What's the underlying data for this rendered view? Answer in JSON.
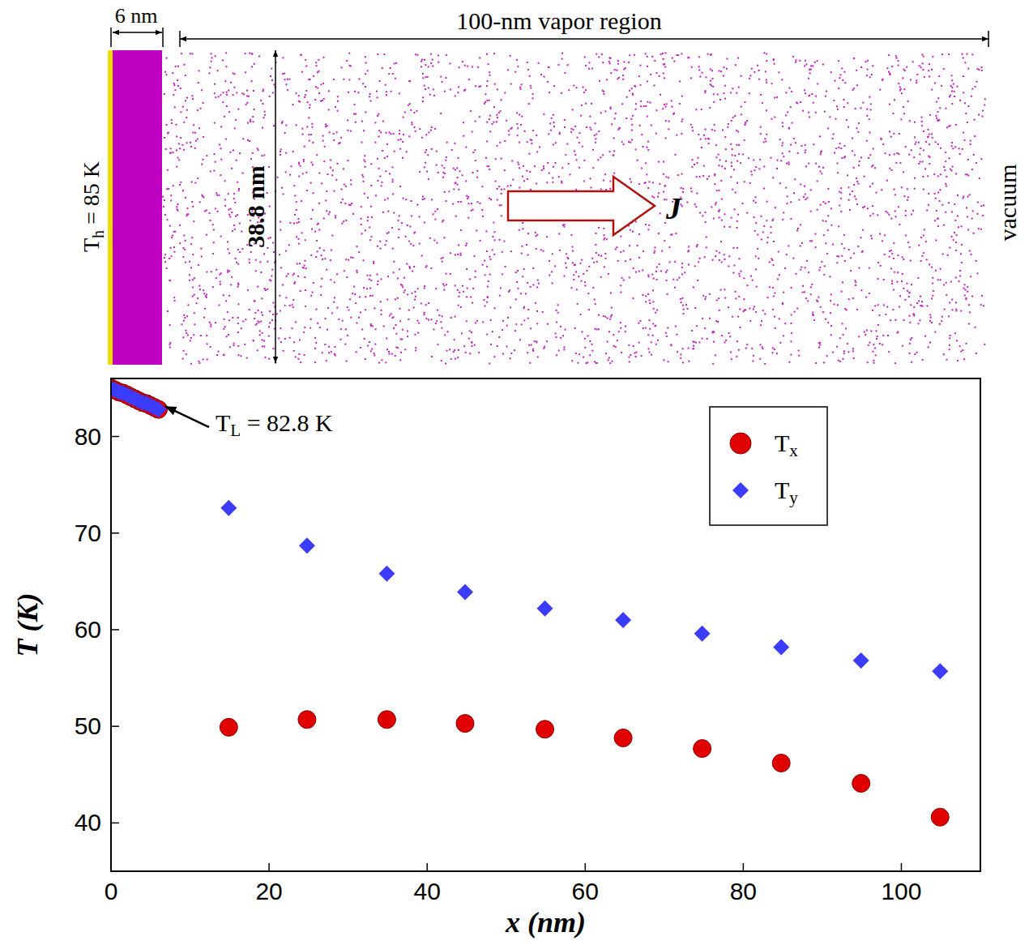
{
  "chart_data": {
    "type": "scatter",
    "x_label": "x (nm)",
    "y_label": "T (K)",
    "xlim": [
      0,
      110
    ],
    "ylim": [
      35,
      86
    ],
    "xticks": [
      0,
      20,
      40,
      60,
      80,
      100
    ],
    "yticks": [
      40,
      50,
      60,
      70,
      80
    ],
    "grid": false,
    "legend": "upper right",
    "series": [
      {
        "name": "Tx",
        "color": "#e00000",
        "marker": "circle",
        "x": [
          0,
          0.5,
          1,
          1.5,
          2,
          2.5,
          3,
          3.5,
          4,
          4.5,
          5,
          5.5,
          6,
          14.9,
          24.8,
          34.9,
          44.8,
          54.9,
          64.8,
          74.8,
          84.8,
          94.9,
          104.9
        ],
        "values": [
          85.0,
          84.8,
          84.6,
          84.5,
          84.3,
          84.1,
          83.9,
          83.7,
          83.5,
          83.4,
          83.2,
          83.0,
          82.8,
          49.9,
          50.7,
          50.7,
          50.3,
          49.7,
          48.8,
          47.7,
          46.2,
          44.1,
          40.6
        ]
      },
      {
        "name": "Ty",
        "color": "#3c3cff",
        "marker": "diamond",
        "x": [
          0,
          0.5,
          1,
          1.5,
          2,
          2.5,
          3,
          3.5,
          4,
          4.5,
          5,
          5.5,
          6,
          14.9,
          24.8,
          34.9,
          44.8,
          54.9,
          64.8,
          74.8,
          84.8,
          94.9,
          104.9
        ],
        "values": [
          85.0,
          84.8,
          84.6,
          84.5,
          84.3,
          84.1,
          83.9,
          83.7,
          83.5,
          83.4,
          83.2,
          83.0,
          82.8,
          72.6,
          68.7,
          65.8,
          63.9,
          62.2,
          61.0,
          59.6,
          58.2,
          56.8,
          55.7
        ]
      }
    ],
    "annotations": [
      {
        "text": "TL = 82.8 K",
        "x": 6,
        "y": 82.8
      }
    ]
  },
  "schematic": {
    "wall_label": "Th = 85 K",
    "liquid_width_label": "6 nm",
    "vapor_label": "100-nm vapor region",
    "height_label": "38.8 nm",
    "flux_label": "J",
    "vacuum_label": "vacuum"
  }
}
